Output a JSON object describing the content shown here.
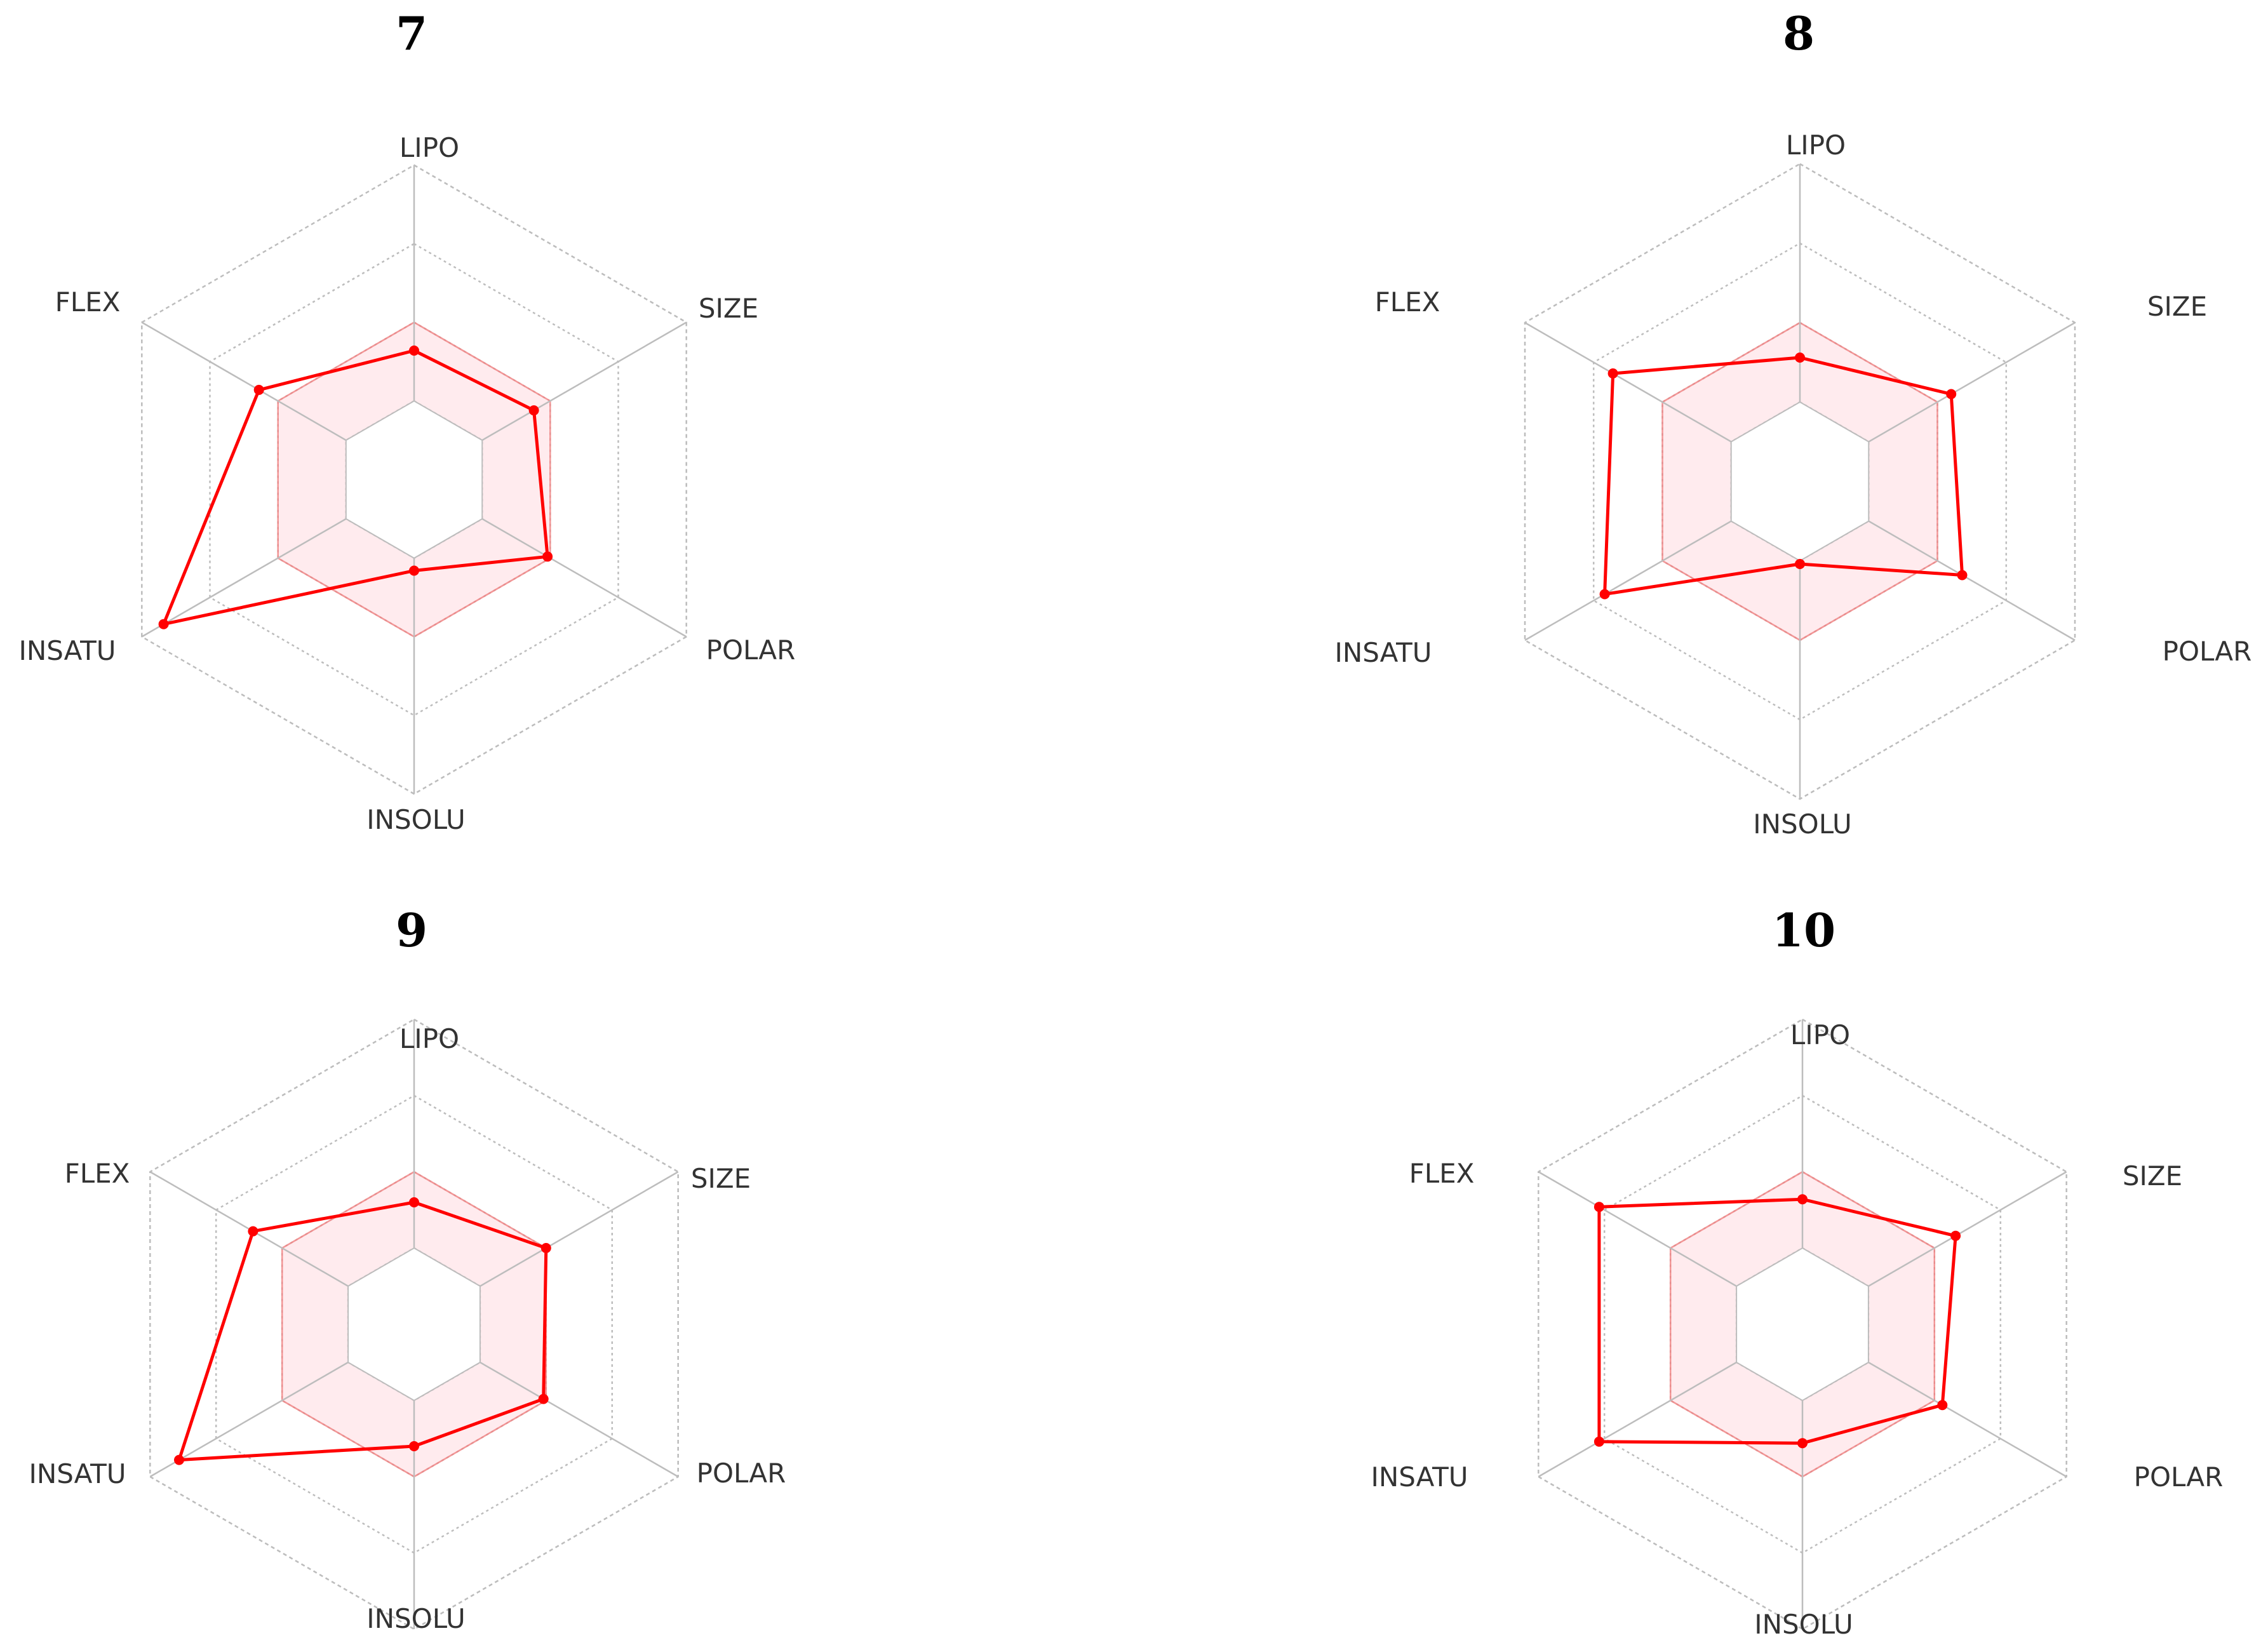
{
  "colors": {
    "series_line": "#ff0000",
    "optimal_fill": "#ffb6c1",
    "optimal_stroke": "#f08080",
    "grid": "#bdbdbd",
    "background": "#ffffff"
  },
  "chart_data": [
    {
      "type": "radar",
      "title": "7",
      "axes": [
        "LIPO",
        "SIZE",
        "POLAR",
        "INSOLU",
        "INSATU",
        "FLEX"
      ],
      "rlim": [
        0,
        1
      ],
      "grid": true,
      "optimal_range": {
        "inner": [
          0.25,
          0.25,
          0.25,
          0.25,
          0.25,
          0.25
        ],
        "outer": [
          0.5,
          0.5,
          0.5,
          0.5,
          0.5,
          0.5
        ]
      },
      "series": [
        {
          "values": [
            0.41,
            0.44,
            0.49,
            0.29,
            0.92,
            0.57
          ]
        }
      ]
    },
    {
      "type": "radar",
      "title": "8",
      "axes": [
        "LIPO",
        "SIZE",
        "POLAR",
        "INSOLU",
        "INSATU",
        "FLEX"
      ],
      "rlim": [
        0,
        1
      ],
      "grid": true,
      "optimal_range": {
        "inner": [
          0.25,
          0.25,
          0.25,
          0.25,
          0.25,
          0.25
        ],
        "outer": [
          0.5,
          0.5,
          0.5,
          0.5,
          0.5,
          0.5
        ]
      },
      "series": [
        {
          "values": [
            0.39,
            0.55,
            0.59,
            0.26,
            0.71,
            0.68
          ]
        }
      ]
    },
    {
      "type": "radar",
      "title": "9",
      "axes": [
        "LIPO",
        "SIZE",
        "POLAR",
        "INSOLU",
        "INSATU",
        "FLEX"
      ],
      "rlim": [
        0,
        1
      ],
      "grid": true,
      "optimal_range": {
        "inner": [
          0.25,
          0.25,
          0.25,
          0.25,
          0.25,
          0.25
        ],
        "outer": [
          0.5,
          0.5,
          0.5,
          0.5,
          0.5,
          0.5
        ]
      },
      "series": [
        {
          "values": [
            0.4,
            0.5,
            0.49,
            0.4,
            0.89,
            0.61
          ]
        }
      ]
    },
    {
      "type": "radar",
      "title": "10",
      "axes": [
        "LIPO",
        "SIZE",
        "POLAR",
        "INSOLU",
        "INSATU",
        "FLEX"
      ],
      "rlim": [
        0,
        1
      ],
      "grid": true,
      "optimal_range": {
        "inner": [
          0.25,
          0.25,
          0.25,
          0.25,
          0.25,
          0.25
        ],
        "outer": [
          0.5,
          0.5,
          0.5,
          0.5,
          0.5,
          0.5
        ]
      },
      "series": [
        {
          "values": [
            0.41,
            0.58,
            0.53,
            0.39,
            0.77,
            0.77
          ]
        }
      ]
    }
  ]
}
